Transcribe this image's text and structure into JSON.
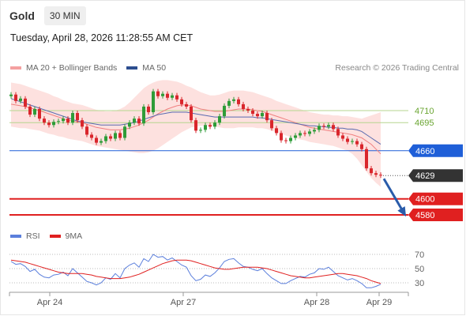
{
  "header": {
    "symbol": "Gold",
    "timeframe": "30 MIN",
    "datetime": "Tuesday, April 28, 2026 11:28:55 AM CET"
  },
  "legend": {
    "ma20": "MA 20 + Bollinger Bands",
    "ma50": "MA 50",
    "credit": "Research © 2026 Trading Central",
    "rsi": "RSI",
    "rsi9": "9MA"
  },
  "colors": {
    "up": "#2e9c38",
    "down": "#d9262c",
    "bands": "#fde1df",
    "ma20": "#f08080",
    "ma50": "#5a6bb0",
    "pivot": "#1f5fd8",
    "current": "#333333",
    "support": "#e02020",
    "resistance_line": "#b5d68f",
    "resistance_text": "#6aa531",
    "arrow": "#2a5caa",
    "rsi": "#5b7fdc",
    "rsi9": "#e02020"
  },
  "chart_data": [
    {
      "type": "line",
      "title": "",
      "x_ticks": [
        "Apr 24",
        "Apr 27",
        "Apr 28",
        "Apr 29"
      ],
      "price_levels": [
        {
          "label": "4710",
          "value": 4710,
          "kind": "resistance"
        },
        {
          "label": "4695",
          "value": 4695,
          "kind": "resistance"
        },
        {
          "label": "4660",
          "value": 4660,
          "kind": "pivot"
        },
        {
          "label": "4629",
          "value": 4629,
          "kind": "current"
        },
        {
          "label": "4600",
          "value": 4600,
          "kind": "support"
        },
        {
          "label": "4580",
          "value": 4580,
          "kind": "support"
        }
      ],
      "close": [
        4730,
        4722,
        4725,
        4715,
        4705,
        4712,
        4700,
        4695,
        4692,
        4696,
        4697,
        4700,
        4695,
        4707,
        4698,
        4690,
        4680,
        4676,
        4670,
        4672,
        4678,
        4675,
        4682,
        4676,
        4690,
        4695,
        4700,
        4694,
        4715,
        4708,
        4734,
        4728,
        4731,
        4726,
        4729,
        4724,
        4718,
        4715,
        4698,
        4685,
        4686,
        4692,
        4690,
        4695,
        4703,
        4716,
        4722,
        4724,
        4718,
        4712,
        4710,
        4706,
        4703,
        4707,
        4698,
        4688,
        4682,
        4673,
        4672,
        4676,
        4679,
        4682,
        4681,
        4684,
        4686,
        4691,
        4690,
        4692,
        4687,
        4679,
        4675,
        4671,
        4672,
        4668,
        4662,
        4638,
        4632,
        4630,
        4629
      ],
      "ma20": [
        4718,
        4717,
        4716,
        4715,
        4713,
        4712,
        4710,
        4708,
        4706,
        4704,
        4702,
        4700,
        4698,
        4697,
        4696,
        4695,
        4693,
        4691,
        4689,
        4688,
        4687,
        4686,
        4686,
        4686,
        4687,
        4688,
        4690,
        4692,
        4695,
        4698,
        4702,
        4706,
        4709,
        4712,
        4714,
        4716,
        4717,
        4717,
        4716,
        4714,
        4712,
        4711,
        4710,
        4709,
        4709,
        4709,
        4710,
        4711,
        4712,
        4712,
        4712,
        4711,
        4710,
        4709,
        4707,
        4705,
        4703,
        4701,
        4699,
        4697,
        4695,
        4693,
        4691,
        4689,
        4688,
        4687,
        4686,
        4685,
        4684,
        4683,
        4682,
        4681,
        4680,
        4678,
        4676,
        4672,
        4668,
        4662,
        4656
      ],
      "ma50": [
        4725,
        4723,
        4721,
        4719,
        4717,
        4715,
        4713,
        4711,
        4709,
        4707,
        4705,
        4703,
        4701,
        4699,
        4697,
        4696,
        4695,
        4694,
        4693,
        4692,
        4692,
        4692,
        4692,
        4692,
        4693,
        4694,
        4695,
        4697,
        4699,
        4701,
        4703,
        4705,
        4706,
        4707,
        4708,
        4708,
        4708,
        4708,
        4707,
        4706,
        4705,
        4704,
        4703,
        4702,
        4702,
        4702,
        4702,
        4702,
        4702,
        4702,
        4702,
        4702,
        4701,
        4701,
        4700,
        4699,
        4698,
        4697,
        4696,
        4695,
        4694,
        4693,
        4692,
        4691,
        4691,
        4690,
        4690,
        4689,
        4689,
        4688,
        4688,
        4687,
        4687,
        4686,
        4684,
        4680,
        4676,
        4672,
        4668
      ],
      "band_upper": [
        4745,
        4744,
        4743,
        4741,
        4739,
        4737,
        4735,
        4733,
        4731,
        4728,
        4726,
        4723,
        4721,
        4719,
        4718,
        4717,
        4715,
        4713,
        4711,
        4710,
        4709,
        4709,
        4710,
        4712,
        4715,
        4720,
        4726,
        4732,
        4738,
        4742,
        4745,
        4747,
        4748,
        4748,
        4747,
        4746,
        4744,
        4741,
        4739,
        4736,
        4733,
        4731,
        4729,
        4729,
        4730,
        4732,
        4734,
        4735,
        4735,
        4735,
        4734,
        4733,
        4731,
        4729,
        4727,
        4725,
        4722,
        4720,
        4718,
        4716,
        4714,
        4712,
        4710,
        4708,
        4707,
        4706,
        4705,
        4705,
        4704,
        4704,
        4703,
        4703,
        4702,
        4701,
        4700,
        4702,
        4704,
        4706,
        4708
      ],
      "band_lower": [
        4690,
        4689,
        4688,
        4688,
        4687,
        4686,
        4685,
        4683,
        4681,
        4680,
        4678,
        4677,
        4675,
        4674,
        4673,
        4672,
        4670,
        4668,
        4666,
        4665,
        4664,
        4663,
        4662,
        4661,
        4660,
        4659,
        4658,
        4657,
        4657,
        4658,
        4660,
        4663,
        4667,
        4671,
        4675,
        4679,
        4683,
        4686,
        4689,
        4690,
        4691,
        4691,
        4691,
        4690,
        4689,
        4688,
        4688,
        4688,
        4689,
        4689,
        4689,
        4689,
        4688,
        4688,
        4687,
        4685,
        4683,
        4681,
        4679,
        4677,
        4676,
        4674,
        4673,
        4671,
        4670,
        4669,
        4668,
        4667,
        4666,
        4664,
        4662,
        4660,
        4656,
        4650,
        4642,
        4634,
        4626,
        4620,
        4615
      ],
      "rsi_levels": [
        70,
        50,
        30
      ],
      "rsi": [
        60,
        56,
        57,
        53,
        46,
        49,
        42,
        38,
        37,
        41,
        42,
        45,
        40,
        50,
        44,
        38,
        32,
        30,
        27,
        30,
        37,
        35,
        43,
        37,
        50,
        55,
        58,
        52,
        64,
        60,
        70,
        66,
        67,
        62,
        65,
        60,
        55,
        52,
        40,
        33,
        35,
        41,
        39,
        44,
        51,
        60,
        63,
        64,
        58,
        53,
        52,
        49,
        47,
        50,
        43,
        37,
        33,
        29,
        29,
        33,
        36,
        39,
        38,
        42,
        44,
        50,
        49,
        52,
        46,
        40,
        37,
        34,
        36,
        33,
        29,
        23,
        23,
        25,
        28
      ],
      "rsi9": [
        62,
        61,
        60,
        59,
        57,
        55,
        53,
        51,
        49,
        47,
        45,
        44,
        43,
        43,
        43,
        43,
        42,
        41,
        39,
        38,
        37,
        36,
        36,
        36,
        37,
        38,
        40,
        42,
        45,
        48,
        51,
        54,
        57,
        59,
        61,
        62,
        62,
        62,
        61,
        59,
        57,
        55,
        53,
        51,
        50,
        49,
        49,
        50,
        51,
        52,
        52,
        52,
        52,
        51,
        50,
        48,
        46,
        44,
        42,
        40,
        39,
        38,
        37,
        37,
        38,
        39,
        40,
        41,
        42,
        43,
        43,
        42,
        41,
        40,
        38,
        36,
        33,
        31,
        29
      ]
    }
  ]
}
